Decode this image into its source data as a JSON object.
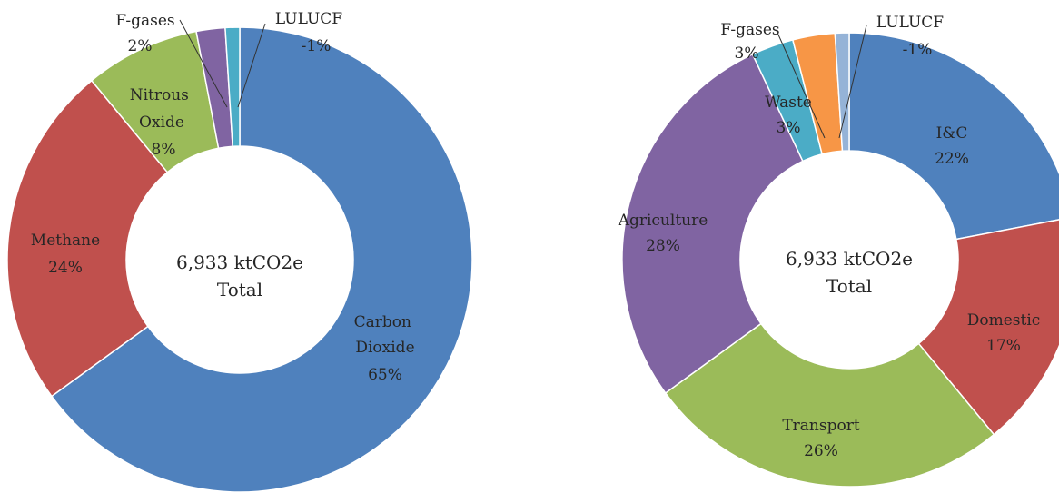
{
  "chart_data": [
    {
      "type": "pie",
      "donut": true,
      "center_label": [
        "6,933 ktCO2e",
        "Total"
      ],
      "categories": [
        "Carbon Dioxide",
        "Methane",
        "Nitrous Oxide",
        "F-gases",
        "LULUCF"
      ],
      "values": [
        65,
        24,
        8,
        2,
        -1
      ],
      "value_labels": [
        "65%",
        "24%",
        "8%",
        "2%",
        "-1%"
      ],
      "colors": [
        "#4f81bd",
        "#c0504d",
        "#9bbb59",
        "#8064a2",
        "#4bacc6"
      ]
    },
    {
      "type": "pie",
      "donut": true,
      "center_label": [
        "6,933 ktCO2e",
        "Total"
      ],
      "categories": [
        "I&C",
        "Domestic",
        "Transport",
        "Agriculture",
        "Waste",
        "F-gases",
        "LULUCF"
      ],
      "values": [
        22,
        17,
        26,
        28,
        3,
        3,
        -1
      ],
      "value_labels": [
        "22%",
        "17%",
        "26%",
        "28%",
        "3%",
        "3%",
        "-1%"
      ],
      "colors": [
        "#4f81bd",
        "#c0504d",
        "#9bbb59",
        "#8064a2",
        "#4bacc6",
        "#f79646",
        "#95b3d7"
      ]
    }
  ]
}
